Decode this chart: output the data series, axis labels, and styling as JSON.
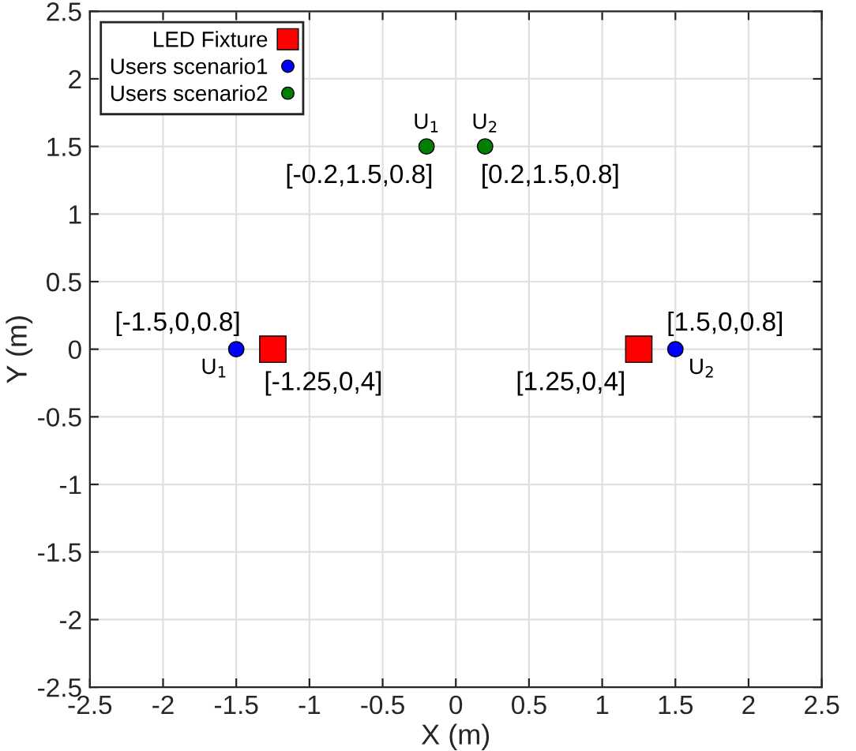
{
  "chart_data": {
    "type": "scatter",
    "xlabel": "X (m)",
    "ylabel": "Y (m)",
    "xlim": [
      -2.5,
      2.5
    ],
    "ylim": [
      -2.5,
      2.5
    ],
    "xticks": [
      -2.5,
      -2,
      -1.5,
      -1,
      -0.5,
      0,
      0.5,
      1,
      1.5,
      2,
      2.5
    ],
    "yticks": [
      -2.5,
      -2,
      -1.5,
      -1,
      -0.5,
      0,
      0.5,
      1,
      1.5,
      2,
      2.5
    ],
    "grid": true,
    "legend": "top left",
    "series": [
      {
        "name": "LED Fixture",
        "color": "#ff0000",
        "marker": "square",
        "x": [
          -1.25,
          1.25
        ],
        "values": [
          0,
          0
        ]
      },
      {
        "name": "Users scenario1",
        "color": "#0000ff",
        "marker": "circle",
        "x": [
          -1.5,
          1.5
        ],
        "values": [
          0,
          0
        ]
      },
      {
        "name": "Users scenario2",
        "color": "#007f00",
        "marker": "circle",
        "x": [
          -0.2,
          0.2
        ],
        "values": [
          1.5,
          1.5
        ]
      }
    ],
    "annotations": [
      {
        "text": "[-1.25,0,4]",
        "x": -1.25,
        "y": 0
      },
      {
        "text": "[1.25,0,4]",
        "x": 1.25,
        "y": 0
      },
      {
        "text": "[-1.5,0,0.8]",
        "x": -1.5,
        "y": 0
      },
      {
        "text": "[1.5,0,0.8]",
        "x": 1.5,
        "y": 0
      },
      {
        "text": "[-0.2,1.5,0.8]",
        "x": -0.2,
        "y": 1.5
      },
      {
        "text": "[0.2,1.5,0.8]",
        "x": 0.2,
        "y": 1.5
      },
      {
        "text": "U$_{1}$",
        "x": -1.5,
        "y": 0
      },
      {
        "text": "U$_{2}$",
        "x": 1.5,
        "y": 0
      },
      {
        "text": "U$_{1}$",
        "x": -0.2,
        "y": 1.5
      },
      {
        "text": "U$_{2}$",
        "x": 0.2,
        "y": 1.5
      }
    ]
  }
}
